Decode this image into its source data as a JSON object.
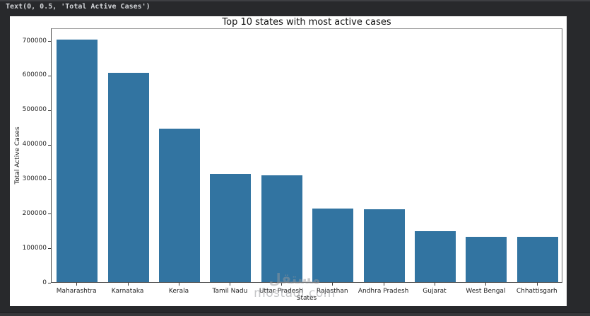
{
  "console": {
    "output": "Text(0, 0.5, 'Total Active Cases')"
  },
  "chart_data": {
    "type": "bar",
    "title": "Top 10 states with most active cases",
    "xlabel": "States",
    "ylabel": "Total Active Cases",
    "categories": [
      "Maharashtra",
      "Karnataka",
      "Kerala",
      "Tamil Nadu",
      "Uttar Pradesh",
      "Rajasthan",
      "Andhra Pradesh",
      "Gujarat",
      "West Bengal",
      "Chhattisgarh"
    ],
    "values": [
      703000,
      605000,
      445000,
      313000,
      310000,
      213000,
      211000,
      148000,
      132000,
      131000
    ],
    "yticks": [
      0,
      100000,
      200000,
      300000,
      400000,
      500000,
      600000,
      700000
    ],
    "ytick_labels": [
      "0",
      "100000",
      "200000",
      "300000",
      "400000",
      "500000",
      "600000",
      "700000"
    ],
    "ylim": [
      0,
      736800
    ],
    "bar_color": "#3274a1",
    "grid": false,
    "legend": "none",
    "background": "#ffffff"
  },
  "watermark": {
    "logo_text": "مستقل",
    "domain": "mostaql.com"
  },
  "colors": {
    "page_background": "#28292c",
    "console_text": "#d2d4d8"
  }
}
